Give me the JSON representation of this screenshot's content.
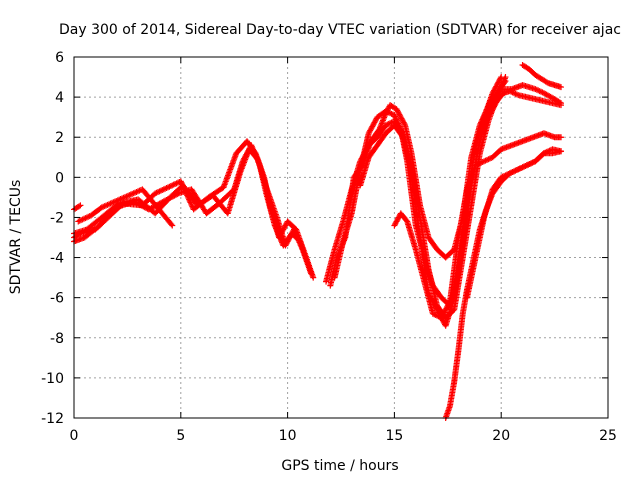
{
  "chart_data": {
    "type": "scatter",
    "title": "Day 300 of 2014, Sidereal Day-to-day VTEC variation (SDTVAR) for receiver ajac",
    "xlabel": "GPS time / hours",
    "ylabel": "SDTVAR / TECUs",
    "xlim": [
      0,
      25
    ],
    "ylim": [
      -12,
      6
    ],
    "xticks": [
      0,
      5,
      10,
      15,
      20,
      25
    ],
    "yticks": [
      -12,
      -10,
      -8,
      -6,
      -4,
      -2,
      0,
      2,
      4,
      6
    ],
    "grid": true,
    "legend": "none",
    "marker": "+",
    "color": "#ff0000",
    "series": [
      {
        "x": [
          0.0,
          0.3,
          1.0,
          1.8,
          2.3,
          3.2,
          3.8,
          4.4,
          5.0,
          5.6,
          6.3,
          7.0,
          7.6,
          8.1,
          8.5,
          8.9,
          9.2,
          9.6,
          10.0,
          10.4,
          10.8,
          11.2
        ],
        "y": [
          -3.0,
          -2.8,
          -2.6,
          -1.8,
          -1.3,
          -1.4,
          -0.8,
          -0.5,
          -0.2,
          -1.6,
          -1.0,
          -0.5,
          1.2,
          1.8,
          1.2,
          0.0,
          -1.5,
          -3.0,
          -2.2,
          -2.6,
          -3.8,
          -5.0
        ]
      },
      {
        "x": [
          0.0,
          0.5,
          1.2,
          2.0,
          2.8,
          3.5,
          4.2,
          4.9,
          5.5,
          6.2,
          6.8,
          7.5,
          7.9,
          8.3,
          8.7,
          9.0,
          9.4,
          9.8,
          10.2,
          10.6,
          11.0
        ],
        "y": [
          -3.2,
          -3.0,
          -2.4,
          -1.5,
          -1.2,
          -1.6,
          -1.2,
          -0.8,
          -0.6,
          -1.8,
          -1.3,
          -0.6,
          0.8,
          1.6,
          0.6,
          -0.8,
          -2.4,
          -3.4,
          -2.8,
          -3.2,
          -4.4
        ]
      },
      {
        "x": [
          0.0,
          0.6,
          1.3,
          2.1,
          3.0,
          3.8,
          4.5,
          5.1,
          5.8,
          6.5,
          7.2,
          7.8,
          8.2,
          8.6,
          9.0,
          9.5,
          9.9,
          10.3,
          10.7,
          11.1
        ],
        "y": [
          -2.8,
          -2.6,
          -2.0,
          -1.3,
          -1.1,
          -1.8,
          -1.0,
          -0.4,
          -1.4,
          -0.9,
          -1.8,
          0.3,
          1.4,
          0.9,
          -0.5,
          -2.0,
          -3.4,
          -2.6,
          -3.6,
          -4.8
        ]
      },
      {
        "x": [
          0.2,
          0.8,
          1.3,
          3.2,
          3.9,
          4.6
        ],
        "y": [
          -2.2,
          -1.9,
          -1.5,
          -0.6,
          -1.5,
          -2.4
        ]
      },
      {
        "x": [
          0.0,
          0.3
        ],
        "y": [
          -1.6,
          -1.4
        ]
      },
      {
        "x": [
          12.0,
          12.3,
          12.7,
          13.1,
          13.5,
          13.9,
          14.3,
          14.6,
          14.8,
          15.1,
          15.5,
          15.8,
          16.2,
          16.6,
          17.0,
          17.4,
          17.8,
          18.2,
          18.6,
          19.0,
          19.5,
          20.0,
          20.5,
          21.0,
          21.6,
          22.0,
          22.5,
          22.8
        ],
        "y": [
          -5.4,
          -4.0,
          -3.0,
          0.0,
          0.6,
          1.8,
          2.4,
          3.2,
          3.6,
          3.4,
          2.6,
          1.2,
          -1.4,
          -3.0,
          -3.6,
          -4.0,
          -3.6,
          -2.0,
          1.0,
          2.6,
          3.8,
          4.4,
          4.4,
          4.6,
          4.4,
          4.2,
          3.9,
          3.7
        ]
      },
      {
        "x": [
          12.2,
          12.6,
          13.0,
          13.4,
          13.8,
          14.2,
          14.6,
          15.0,
          15.3,
          15.6,
          16.0,
          16.4,
          16.8,
          17.2,
          17.6,
          18.0,
          18.4,
          18.8,
          19.2,
          19.6,
          20.0
        ],
        "y": [
          -5.0,
          -3.2,
          -1.8,
          0.4,
          2.2,
          3.0,
          3.3,
          3.1,
          2.4,
          0.8,
          -2.4,
          -4.0,
          -5.4,
          -6.0,
          -6.4,
          -4.8,
          -1.2,
          1.6,
          3.0,
          4.2,
          5.0
        ]
      },
      {
        "x": [
          11.8,
          12.2,
          12.6,
          13.0,
          13.4,
          13.8,
          14.2,
          14.6,
          15.0,
          15.4,
          15.8,
          16.2,
          16.6,
          17.0,
          17.4,
          17.8,
          18.2,
          18.6,
          19.0,
          19.4,
          19.8,
          20.2
        ],
        "y": [
          -5.2,
          -3.6,
          -2.2,
          -0.6,
          0.8,
          1.6,
          2.0,
          2.6,
          2.8,
          2.2,
          0.6,
          -2.0,
          -4.6,
          -6.4,
          -7.0,
          -6.6,
          -4.0,
          -1.4,
          1.2,
          2.8,
          4.0,
          5.0
        ]
      },
      {
        "x": [
          13.4,
          13.8,
          14.2,
          14.6,
          15.0,
          15.4,
          15.8,
          16.2,
          16.6,
          17.0,
          17.4,
          17.8,
          18.2,
          18.6,
          19.0,
          19.4,
          19.8,
          20.2
        ],
        "y": [
          -0.4,
          1.0,
          1.6,
          2.2,
          2.6,
          2.0,
          0.2,
          -3.0,
          -5.8,
          -6.6,
          -7.4,
          -6.0,
          -3.2,
          -0.4,
          1.8,
          3.2,
          4.2,
          4.8
        ]
      },
      {
        "x": [
          15.0,
          15.3,
          15.6,
          16.0,
          16.4,
          16.8,
          17.2,
          17.6,
          18.0,
          18.4,
          18.8,
          19.2,
          19.6,
          20.0,
          20.5,
          21.0,
          21.5,
          22.0,
          22.5,
          22.8
        ],
        "y": [
          -2.4,
          -1.8,
          -2.2,
          -3.6,
          -5.2,
          -6.8,
          -7.0,
          -6.2,
          -3.0,
          -0.6,
          0.6,
          0.8,
          1.0,
          1.4,
          1.6,
          1.8,
          2.0,
          2.2,
          2.0,
          2.0
        ]
      },
      {
        "x": [
          17.4,
          17.6,
          17.8,
          18.0,
          18.2,
          18.4,
          18.6,
          18.8,
          19.0,
          19.3,
          19.6,
          20.0,
          20.4,
          20.8,
          21.2,
          21.6,
          22.0,
          22.4,
          22.8
        ],
        "y": [
          -12.0,
          -11.4,
          -10.2,
          -8.6,
          -6.8,
          -5.6,
          -4.6,
          -3.6,
          -2.6,
          -1.6,
          -0.8,
          -0.2,
          0.2,
          0.4,
          0.6,
          0.8,
          1.2,
          1.2,
          1.3
        ]
      },
      {
        "x": [
          18.4,
          18.8,
          19.2,
          19.6,
          20.0,
          20.4,
          20.8,
          21.2,
          21.6,
          22.0,
          22.4,
          22.8
        ],
        "y": [
          -6.0,
          -4.0,
          -2.0,
          -0.6,
          0.0,
          0.2,
          0.4,
          0.6,
          0.8,
          1.2,
          1.4,
          1.3
        ]
      },
      {
        "x": [
          21.0,
          21.3,
          21.6,
          21.9,
          22.2,
          22.5,
          22.8
        ],
        "y": [
          5.6,
          5.4,
          5.1,
          4.9,
          4.7,
          4.6,
          4.5
        ]
      },
      {
        "x": [
          19.5,
          19.8,
          20.1,
          20.4,
          20.8,
          21.2,
          21.6,
          22.0,
          22.4,
          22.8
        ],
        "y": [
          3.2,
          3.8,
          4.2,
          4.3,
          4.1,
          4.0,
          3.9,
          3.8,
          3.7,
          3.6
        ]
      }
    ]
  }
}
